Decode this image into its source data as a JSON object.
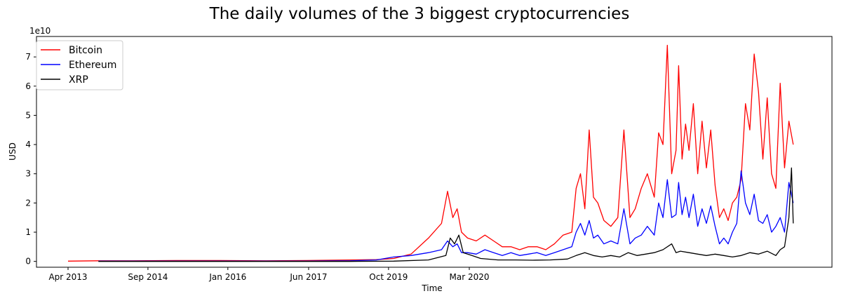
{
  "chart_data": {
    "type": "line",
    "title": "The daily volumes of the 3 biggest cryptocurrencies",
    "xlabel": "Time",
    "ylabel": "USD",
    "y_offset_text": "1e10",
    "ylim": [
      -0.2,
      7.7
    ],
    "xlim_years": [
      2013.25,
      2021.65
    ],
    "yticks": [
      0,
      1,
      2,
      3,
      4,
      5,
      6,
      7
    ],
    "ytick_labels": [
      "0",
      "1",
      "2",
      "3",
      "4",
      "5",
      "6",
      "7"
    ],
    "xtick_labels": [
      "Apr 2013",
      "Sep 2014",
      "Jan 2016",
      "Jun 2017",
      "Oct 2019",
      "Mar 2020"
    ],
    "xtick_positions": [
      2013.25,
      2014.17,
      2015.09,
      2016.02,
      2016.94,
      2017.87
    ],
    "legend_position": "upper left",
    "series": [
      {
        "name": "Bitcoin",
        "color": "#ff0000",
        "x": [
          2013.25,
          2013.6,
          2014.0,
          2014.5,
          2015.0,
          2015.5,
          2016.0,
          2016.5,
          2016.8,
          2017.0,
          2017.2,
          2017.4,
          2017.55,
          2017.62,
          2017.68,
          2017.73,
          2017.78,
          2017.85,
          2017.95,
          2018.05,
          2018.15,
          2018.25,
          2018.35,
          2018.45,
          2018.55,
          2018.65,
          2018.75,
          2018.85,
          2018.95,
          2019.05,
          2019.1,
          2019.15,
          2019.2,
          2019.25,
          2019.3,
          2019.35,
          2019.42,
          2019.5,
          2019.58,
          2019.65,
          2019.72,
          2019.78,
          2019.85,
          2019.92,
          2020.0,
          2020.05,
          2020.1,
          2020.15,
          2020.2,
          2020.25,
          2020.28,
          2020.32,
          2020.36,
          2020.4,
          2020.45,
          2020.5,
          2020.55,
          2020.6,
          2020.65,
          2020.7,
          2020.75,
          2020.8,
          2020.85,
          2020.9,
          2020.95,
          2021.0,
          2021.05,
          2021.1,
          2021.15,
          2021.2,
          2021.25,
          2021.3,
          2021.35,
          2021.4,
          2021.45,
          2021.5,
          2021.55,
          2021.6
        ],
        "values": [
          0.01,
          0.02,
          0.02,
          0.03,
          0.03,
          0.02,
          0.03,
          0.05,
          0.06,
          0.1,
          0.25,
          0.8,
          1.3,
          2.4,
          1.5,
          1.8,
          1.0,
          0.8,
          0.7,
          0.9,
          0.7,
          0.5,
          0.5,
          0.4,
          0.5,
          0.5,
          0.4,
          0.6,
          0.9,
          1.0,
          2.5,
          3.0,
          1.8,
          4.5,
          2.2,
          2.0,
          1.4,
          1.2,
          1.5,
          4.5,
          1.5,
          1.8,
          2.5,
          3.0,
          2.2,
          4.4,
          4.0,
          7.4,
          3.0,
          3.8,
          6.7,
          3.5,
          4.7,
          3.8,
          5.4,
          3.0,
          4.8,
          3.2,
          4.5,
          2.6,
          1.5,
          1.8,
          1.4,
          2.0,
          2.2,
          2.8,
          5.4,
          4.5,
          7.1,
          5.8,
          3.5,
          5.6,
          3.0,
          2.5,
          6.1,
          3.2,
          4.8,
          4.0
        ]
      },
      {
        "name": "Ethereum",
        "color": "#0000ff",
        "x": [
          2013.6,
          2014.0,
          2014.5,
          2015.0,
          2015.5,
          2016.0,
          2016.5,
          2016.8,
          2017.0,
          2017.2,
          2017.4,
          2017.55,
          2017.62,
          2017.68,
          2017.73,
          2017.78,
          2017.85,
          2017.95,
          2018.05,
          2018.15,
          2018.25,
          2018.35,
          2018.45,
          2018.55,
          2018.65,
          2018.75,
          2018.85,
          2018.95,
          2019.05,
          2019.1,
          2019.15,
          2019.2,
          2019.25,
          2019.3,
          2019.35,
          2019.42,
          2019.5,
          2019.58,
          2019.65,
          2019.72,
          2019.78,
          2019.85,
          2019.92,
          2020.0,
          2020.05,
          2020.1,
          2020.15,
          2020.2,
          2020.25,
          2020.28,
          2020.32,
          2020.36,
          2020.4,
          2020.45,
          2020.5,
          2020.55,
          2020.6,
          2020.65,
          2020.7,
          2020.75,
          2020.8,
          2020.85,
          2020.9,
          2020.95,
          2021.0,
          2021.05,
          2021.1,
          2021.15,
          2021.2,
          2021.25,
          2021.3,
          2021.35,
          2021.4,
          2021.45,
          2021.5,
          2021.55,
          2021.6
        ],
        "values": [
          0.01,
          0.01,
          0.01,
          0.01,
          0.01,
          0.01,
          0.02,
          0.05,
          0.15,
          0.2,
          0.3,
          0.4,
          0.7,
          0.5,
          0.6,
          0.3,
          0.3,
          0.25,
          0.4,
          0.3,
          0.2,
          0.3,
          0.2,
          0.25,
          0.3,
          0.2,
          0.3,
          0.4,
          0.5,
          1.0,
          1.3,
          0.9,
          1.4,
          0.8,
          0.9,
          0.6,
          0.7,
          0.6,
          1.8,
          0.6,
          0.8,
          0.9,
          1.2,
          0.9,
          2.0,
          1.5,
          2.8,
          1.5,
          1.6,
          2.7,
          1.6,
          2.2,
          1.5,
          2.3,
          1.2,
          1.8,
          1.3,
          1.9,
          1.2,
          0.6,
          0.8,
          0.6,
          1.0,
          1.3,
          3.1,
          2.0,
          1.6,
          2.3,
          1.4,
          1.3,
          1.6,
          1.0,
          1.2,
          1.5,
          1.0,
          2.7,
          2.0
        ]
      },
      {
        "name": "XRP",
        "color": "#000000",
        "x": [
          2013.6,
          2014.0,
          2014.5,
          2015.0,
          2015.5,
          2016.0,
          2016.5,
          2017.0,
          2017.4,
          2017.6,
          2017.65,
          2017.7,
          2017.75,
          2017.8,
          2017.9,
          2018.0,
          2018.2,
          2018.4,
          2018.6,
          2018.8,
          2019.0,
          2019.1,
          2019.2,
          2019.3,
          2019.4,
          2019.5,
          2019.6,
          2019.7,
          2019.8,
          2019.9,
          2020.0,
          2020.1,
          2020.2,
          2020.25,
          2020.3,
          2020.4,
          2020.5,
          2020.6,
          2020.7,
          2020.8,
          2020.9,
          2021.0,
          2021.1,
          2021.2,
          2021.3,
          2021.4,
          2021.45,
          2021.5,
          2021.55,
          2021.58,
          2021.6
        ],
        "values": [
          0.0,
          0.0,
          0.0,
          0.0,
          0.0,
          0.0,
          0.0,
          0.01,
          0.05,
          0.2,
          0.8,
          0.6,
          0.9,
          0.3,
          0.2,
          0.1,
          0.05,
          0.05,
          0.04,
          0.05,
          0.08,
          0.2,
          0.3,
          0.2,
          0.15,
          0.2,
          0.15,
          0.3,
          0.2,
          0.25,
          0.3,
          0.4,
          0.6,
          0.3,
          0.35,
          0.3,
          0.25,
          0.2,
          0.25,
          0.2,
          0.15,
          0.2,
          0.3,
          0.25,
          0.35,
          0.2,
          0.4,
          0.5,
          1.5,
          3.2,
          1.3
        ]
      }
    ]
  }
}
